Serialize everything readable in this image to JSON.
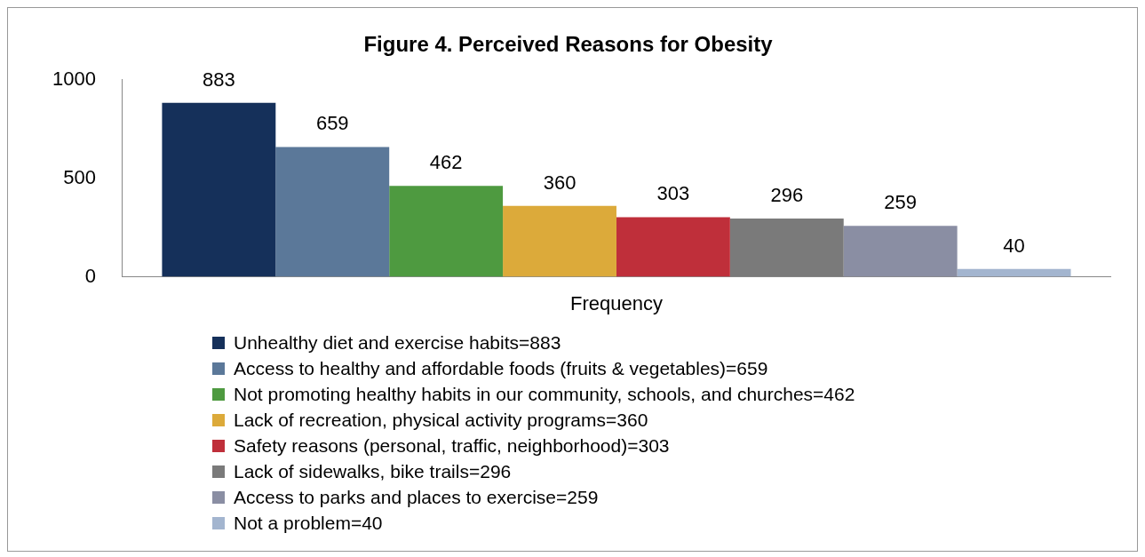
{
  "chart_data": {
    "type": "bar",
    "title": "Figure 4. Perceived Reasons for Obesity",
    "categories": [
      "Frequency"
    ],
    "series": [
      {
        "name": "Unhealthy diet and exercise habits=883",
        "color": "#15305a",
        "values": [
          883
        ]
      },
      {
        "name": "Access to healthy and affordable foods (fruits & vegetables)=659",
        "color": "#5b7899",
        "values": [
          659
        ]
      },
      {
        "name": "Not promoting healthy habits in our community, schools, and churches=462",
        "color": "#4e9a40",
        "values": [
          462
        ]
      },
      {
        "name": "Lack of recreation, physical activity programs=360",
        "color": "#dcaa3a",
        "values": [
          360
        ]
      },
      {
        "name": "Safety reasons (personal, traffic, neighborhood)=303",
        "color": "#bf2f3a",
        "values": [
          303
        ]
      },
      {
        "name": "Lack of sidewalks, bike trails=296",
        "color": "#7a7a7a",
        "values": [
          296
        ]
      },
      {
        "name": "Access to parks and places to exercise=259",
        "color": "#8a8ea3",
        "values": [
          259
        ]
      },
      {
        "name": "Not a problem=40",
        "color": "#a3b5cf",
        "values": [
          40
        ]
      }
    ],
    "ylim": [
      0,
      1000
    ],
    "yticks": [
      0,
      500,
      1000
    ],
    "grid": false,
    "legend": "bottom",
    "data_labels": true
  }
}
